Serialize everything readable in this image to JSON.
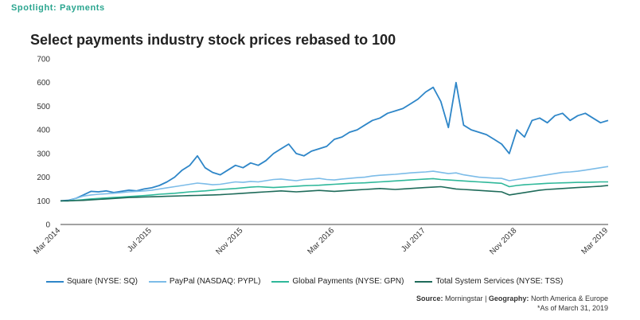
{
  "header": {
    "eyebrow": "Spotlight: Payments",
    "title": "Select payments industry stock prices rebased to 100"
  },
  "source": {
    "source_label": "Source:",
    "source_value": "Morningstar",
    "geography_label": "Geography:",
    "geography_value": "North America & Europe",
    "note": "*As of March 31, 2019"
  },
  "chart_data": {
    "type": "line",
    "title": "Select payments industry stock prices rebased to 100",
    "xlabel": "",
    "ylabel": "",
    "ylim": [
      0,
      700
    ],
    "yticks": [
      "0",
      "100",
      "200",
      "300",
      "400",
      "500",
      "600",
      "700"
    ],
    "xticks": [
      "Mar 2014",
      "Jul 2015",
      "Nov 2015",
      "Mar 2016",
      "Jul 2017",
      "Nov 2018",
      "Mar 2019"
    ],
    "grid": false,
    "legend_position": "bottom",
    "series": [
      {
        "name": "Square (NYSE: SQ)",
        "color": "#2e86c8",
        "values": [
          100,
          102,
          110,
          125,
          140,
          138,
          142,
          135,
          140,
          145,
          142,
          150,
          155,
          165,
          180,
          200,
          230,
          250,
          290,
          240,
          220,
          210,
          230,
          250,
          240,
          260,
          250,
          270,
          300,
          320,
          340,
          300,
          290,
          310,
          320,
          330,
          360,
          370,
          390,
          400,
          420,
          440,
          450,
          470,
          480,
          490,
          510,
          530,
          560,
          580,
          520,
          410,
          600,
          420,
          400,
          390,
          380,
          360,
          340,
          300,
          400,
          370,
          440,
          450,
          430,
          460,
          470,
          440,
          460,
          470,
          450,
          430,
          440
        ]
      },
      {
        "name": "PayPal (NASDAQ: PYPL)",
        "color": "#7cbce8",
        "values": [
          100,
          100,
          110,
          120,
          125,
          128,
          130,
          132,
          135,
          138,
          140,
          142,
          145,
          150,
          155,
          160,
          165,
          170,
          175,
          172,
          168,
          170,
          175,
          180,
          178,
          182,
          180,
          185,
          190,
          192,
          188,
          185,
          190,
          192,
          195,
          190,
          188,
          192,
          195,
          198,
          200,
          205,
          208,
          210,
          212,
          215,
          218,
          220,
          222,
          225,
          220,
          215,
          218,
          210,
          205,
          200,
          198,
          196,
          195,
          185,
          190,
          195,
          200,
          205,
          210,
          215,
          220,
          222,
          225,
          230,
          235,
          240,
          245
        ]
      },
      {
        "name": "Global Payments (NYSE: GPN)",
        "color": "#2fb89a",
        "values": [
          100,
          100,
          102,
          105,
          108,
          110,
          112,
          114,
          116,
          118,
          120,
          122,
          125,
          128,
          130,
          132,
          135,
          138,
          140,
          142,
          145,
          148,
          150,
          152,
          155,
          158,
          160,
          158,
          156,
          158,
          160,
          162,
          164,
          165,
          166,
          168,
          170,
          172,
          174,
          175,
          176,
          178,
          180,
          182,
          184,
          186,
          188,
          190,
          192,
          194,
          190,
          188,
          186,
          184,
          182,
          180,
          178,
          176,
          174,
          160,
          165,
          168,
          170,
          172,
          174,
          175,
          176,
          177,
          178,
          178,
          179,
          180,
          180
        ]
      },
      {
        "name": "Total System Services (NYSE: TSS)",
        "color": "#1f6b5a",
        "values": [
          100,
          100,
          101,
          102,
          104,
          106,
          108,
          110,
          112,
          114,
          115,
          116,
          117,
          118,
          119,
          120,
          121,
          122,
          123,
          124,
          125,
          126,
          128,
          130,
          132,
          134,
          136,
          138,
          140,
          142,
          140,
          138,
          140,
          142,
          144,
          142,
          140,
          142,
          144,
          146,
          148,
          150,
          152,
          150,
          148,
          150,
          152,
          154,
          156,
          158,
          160,
          155,
          150,
          148,
          146,
          144,
          142,
          140,
          138,
          125,
          130,
          135,
          140,
          145,
          148,
          150,
          152,
          154,
          156,
          158,
          160,
          162,
          165
        ]
      }
    ]
  }
}
